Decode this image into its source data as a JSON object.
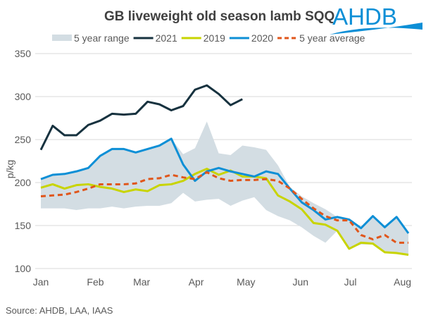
{
  "chart_data": {
    "type": "line",
    "title": "GB liveweight old season lamb SQQ",
    "ylabel": "p/kg",
    "xlabel": "",
    "ylim": [
      100,
      350
    ],
    "y_ticks": [
      "100",
      "150",
      "200",
      "250",
      "300",
      "350"
    ],
    "x_ticks": [
      "Jan",
      "Feb",
      "Mar",
      "Apr",
      "May",
      "Jun",
      "Jul",
      "Aug"
    ],
    "grid": "horizontal",
    "legend_position": "top",
    "x_unit": "week",
    "range": {
      "name": "5 year range",
      "color": "#d3dde3",
      "upper": [
        204,
        209,
        210,
        213,
        217,
        231,
        239,
        239,
        235,
        239,
        243,
        251,
        233,
        240,
        271,
        234,
        232,
        243,
        241,
        238,
        220,
        195,
        184,
        176,
        169,
        160,
        157,
        147,
        161,
        148,
        160,
        141
      ],
      "lower": [
        170,
        170,
        170,
        168,
        170,
        170,
        172,
        170,
        172,
        173,
        173,
        176,
        188,
        178,
        180,
        181,
        173,
        179,
        183,
        168,
        161,
        156,
        148,
        138,
        130,
        144,
        123,
        128,
        128,
        120,
        118,
        116
      ]
    },
    "series": [
      {
        "name": "2021",
        "color": "#17323f",
        "dashed": false,
        "values": [
          238,
          266,
          255,
          255,
          267,
          272,
          280,
          279,
          280,
          294,
          291,
          284,
          289,
          308,
          313,
          303,
          290,
          297
        ]
      },
      {
        "name": "2019",
        "color": "#c8d400",
        "dashed": false,
        "values": [
          194,
          198,
          193,
          197,
          198,
          195,
          193,
          189,
          192,
          190,
          197,
          198,
          202,
          210,
          216,
          209,
          214,
          207,
          207,
          205,
          185,
          178,
          169,
          153,
          151,
          144,
          123,
          130,
          129,
          119,
          118,
          116
        ]
      },
      {
        "name": "2020",
        "color": "#0d8fd6",
        "dashed": false,
        "values": [
          204,
          209,
          210,
          213,
          217,
          231,
          239,
          239,
          235,
          239,
          243,
          251,
          221,
          202,
          213,
          217,
          213,
          210,
          207,
          213,
          210,
          193,
          177,
          168,
          157,
          160,
          157,
          147,
          161,
          148,
          160,
          141
        ]
      },
      {
        "name": "5 year average",
        "color": "#e0561b",
        "dashed": true,
        "values": [
          184,
          185,
          186,
          189,
          193,
          198,
          198,
          198,
          199,
          204,
          205,
          209,
          206,
          204,
          212,
          205,
          202,
          203,
          203,
          204,
          202,
          193,
          181,
          170,
          161,
          156,
          156,
          139,
          134,
          139,
          130,
          130
        ]
      }
    ]
  },
  "source": "Source: AHDB, LAA, IAAS",
  "logo": {
    "text": "AHDB",
    "color": "#0d8fd6"
  }
}
